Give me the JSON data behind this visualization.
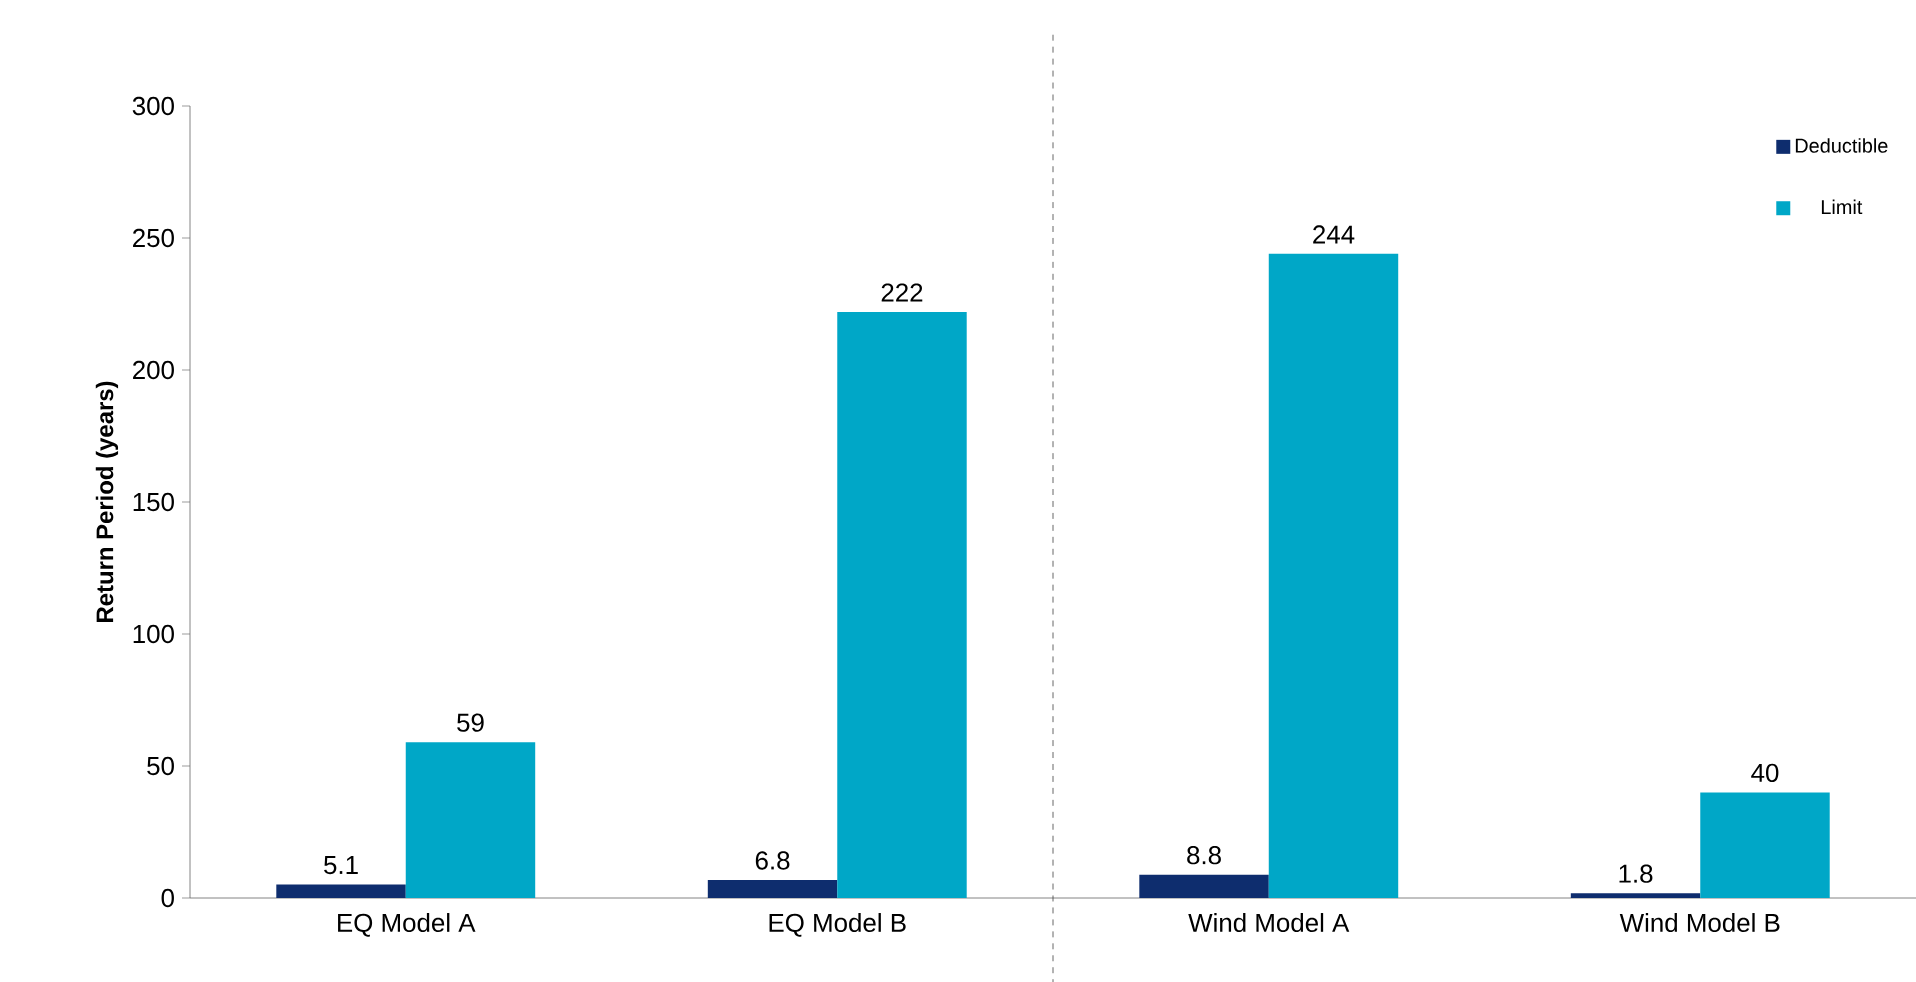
{
  "chart_data": {
    "type": "bar",
    "ylabel": "Return Period (years)",
    "categories": [
      "EQ Model A",
      "EQ Model B",
      "Wind Model A",
      "Wind Model B"
    ],
    "series": [
      {
        "name": "Deductible",
        "color": "#0e2d6e",
        "values": [
          5.1,
          6.8,
          8.8,
          1.8
        ]
      },
      {
        "name": "Limit",
        "color": "#00a7c7",
        "values": [
          59,
          222,
          244,
          40
        ]
      }
    ],
    "ylim": [
      0,
      300
    ],
    "yticks": [
      0,
      50,
      100,
      150,
      200,
      250,
      300
    ],
    "grid": false,
    "legend": "top right",
    "data_labels": true
  }
}
